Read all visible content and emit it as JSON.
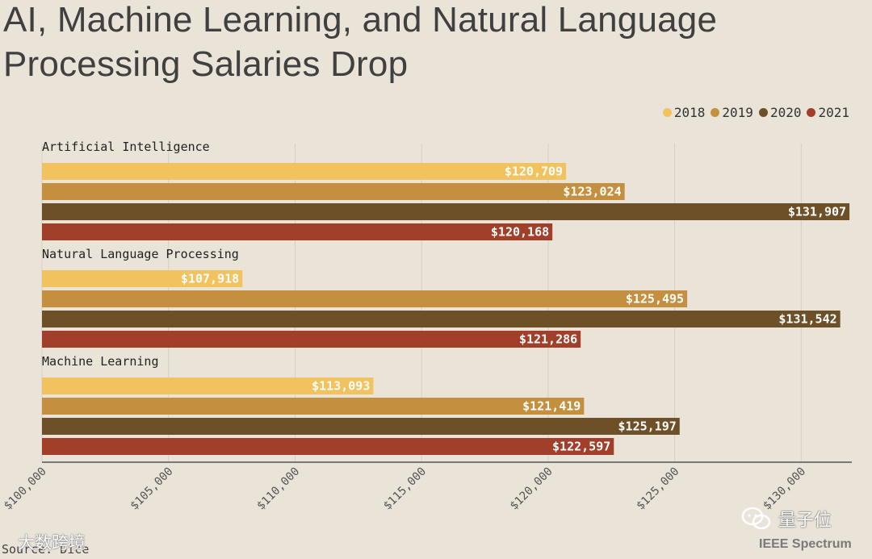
{
  "header": {
    "title_line1": "AI, Machine Learning, and Natural Language",
    "title_line2": "Processing Salaries Drop"
  },
  "colors": {
    "2018": "#f2c25e",
    "2019": "#c4903f",
    "2020": "#6d5028",
    "2021": "#a23f2a",
    "background": "#e9e3d8",
    "grid": "#d5cfc4"
  },
  "chart_data": {
    "type": "bar",
    "orientation": "horizontal",
    "title": "AI, Machine Learning, and Natural Language Processing Salaries Drop",
    "categories": [
      "Artificial Intelligence",
      "Natural Language Processing",
      "Machine Learning"
    ],
    "series": [
      {
        "name": "2018",
        "values": [
          120709,
          107918,
          113093
        ],
        "labels": [
          "$120,709",
          "$107,918",
          "$113,093"
        ]
      },
      {
        "name": "2019",
        "values": [
          123024,
          125495,
          121419
        ],
        "labels": [
          "$123,024",
          "$125,495",
          "$121,419"
        ]
      },
      {
        "name": "2020",
        "values": [
          131907,
          131542,
          125197
        ],
        "labels": [
          "$131,907",
          "$131,542",
          "$125,197"
        ]
      },
      {
        "name": "2021",
        "values": [
          120168,
          121286,
          122597
        ],
        "labels": [
          "$120,168",
          "$121,286",
          "$122,597"
        ]
      }
    ],
    "xlim": [
      100000,
      132000
    ],
    "xticks": [
      100000,
      105000,
      110000,
      115000,
      120000,
      125000,
      130000
    ],
    "xtick_labels": [
      "$100,000",
      "$105,000",
      "$110,000",
      "$115,000",
      "$120,000",
      "$125,000",
      "$130,000"
    ],
    "xlabel": "",
    "ylabel": "",
    "grid": "vertical",
    "legend_position": "top-right"
  },
  "footer": {
    "source": "Source: Dice",
    "brand": "IEEE Spectrum",
    "watermark_left": "大数跨境",
    "watermark_right": "量子位"
  }
}
